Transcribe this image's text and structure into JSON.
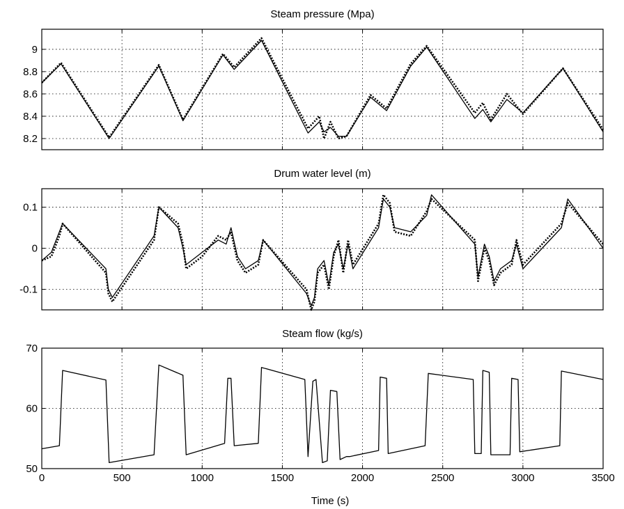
{
  "xlabel": "Time (s)",
  "x_ticks": [
    0,
    500,
    1000,
    1500,
    2000,
    2500,
    3000,
    3500
  ],
  "xlim": [
    0,
    3500
  ],
  "chart_data": [
    {
      "type": "line",
      "title": "Steam pressure (Mpa)",
      "xlabel": "Time (s)",
      "ylabel": "",
      "xlim": [
        0,
        3500
      ],
      "ylim": [
        8.1,
        9.18
      ],
      "y_ticks": [
        "8.2",
        "8.4",
        "8.6",
        "8.8",
        "9"
      ],
      "grid": true,
      "series": [
        {
          "name": "",
          "style": "solid",
          "x": [
            0,
            120,
            420,
            730,
            880,
            1130,
            1200,
            1370,
            1660,
            1730,
            1760,
            1800,
            1850,
            1900,
            2050,
            2150,
            2300,
            2400,
            2700,
            2750,
            2800,
            2900,
            3000,
            3250,
            3500
          ],
          "y": [
            8.7,
            8.87,
            8.2,
            8.85,
            8.36,
            8.95,
            8.82,
            9.08,
            8.25,
            8.35,
            8.26,
            8.3,
            8.22,
            8.22,
            8.57,
            8.45,
            8.85,
            9.02,
            8.38,
            8.46,
            8.35,
            8.55,
            8.43,
            8.83,
            8.26
          ]
        },
        {
          "name": "",
          "style": "dotted",
          "x": [
            0,
            120,
            420,
            730,
            880,
            1130,
            1200,
            1370,
            1660,
            1730,
            1760,
            1800,
            1850,
            1900,
            2050,
            2150,
            2300,
            2400,
            2700,
            2750,
            2800,
            2900,
            3000,
            3250,
            3500
          ],
          "y": [
            8.7,
            8.88,
            8.21,
            8.86,
            8.37,
            8.96,
            8.84,
            9.1,
            8.29,
            8.4,
            8.2,
            8.35,
            8.2,
            8.22,
            8.59,
            8.47,
            8.87,
            9.03,
            8.43,
            8.52,
            8.37,
            8.6,
            8.42,
            8.83,
            8.28
          ]
        }
      ]
    },
    {
      "type": "line",
      "title": "Drum water level (m)",
      "xlabel": "Time (s)",
      "ylabel": "",
      "xlim": [
        0,
        3500
      ],
      "ylim": [
        -0.15,
        0.145
      ],
      "y_ticks": [
        "-0.1",
        "0",
        "0.1"
      ],
      "grid": true,
      "series": [
        {
          "name": "",
          "style": "solid",
          "x": [
            0,
            60,
            110,
            130,
            400,
            415,
            440,
            700,
            730,
            850,
            880,
            900,
            1000,
            1100,
            1150,
            1180,
            1220,
            1270,
            1350,
            1380,
            1650,
            1680,
            1700,
            1720,
            1760,
            1790,
            1820,
            1850,
            1880,
            1910,
            1940,
            2100,
            2130,
            2170,
            2200,
            2300,
            2400,
            2430,
            2700,
            2720,
            2760,
            2790,
            2820,
            2860,
            2930,
            2960,
            3000,
            3240,
            3280,
            3500
          ],
          "y": [
            -0.03,
            -0.01,
            0.04,
            0.06,
            -0.05,
            -0.1,
            -0.12,
            0.03,
            0.1,
            0.05,
            0.0,
            -0.04,
            -0.01,
            0.02,
            0.01,
            0.05,
            -0.02,
            -0.05,
            -0.03,
            0.02,
            -0.11,
            -0.14,
            -0.12,
            -0.05,
            -0.03,
            -0.09,
            -0.01,
            0.01,
            -0.05,
            0.01,
            -0.05,
            0.05,
            0.12,
            0.1,
            0.05,
            0.04,
            0.08,
            0.13,
            0.01,
            -0.07,
            0.01,
            -0.02,
            -0.08,
            -0.05,
            -0.03,
            0.01,
            -0.05,
            0.05,
            0.12,
            0.0
          ]
        },
        {
          "name": "",
          "style": "dotted",
          "x": [
            0,
            60,
            110,
            130,
            400,
            415,
            440,
            700,
            730,
            850,
            880,
            900,
            1000,
            1100,
            1150,
            1180,
            1220,
            1270,
            1350,
            1380,
            1650,
            1680,
            1700,
            1720,
            1760,
            1790,
            1820,
            1850,
            1880,
            1910,
            1940,
            2100,
            2130,
            2170,
            2200,
            2300,
            2400,
            2430,
            2700,
            2720,
            2760,
            2790,
            2820,
            2860,
            2930,
            2960,
            3000,
            3240,
            3280,
            3500
          ],
          "y": [
            -0.03,
            -0.02,
            0.03,
            0.06,
            -0.06,
            -0.11,
            -0.13,
            0.02,
            0.1,
            0.06,
            0.01,
            -0.05,
            -0.02,
            0.03,
            0.02,
            0.04,
            -0.03,
            -0.06,
            -0.04,
            0.02,
            -0.1,
            -0.15,
            -0.13,
            -0.06,
            -0.04,
            -0.1,
            -0.02,
            0.02,
            -0.06,
            0.02,
            -0.04,
            0.06,
            0.13,
            0.11,
            0.04,
            0.03,
            0.09,
            0.12,
            0.02,
            -0.08,
            0.0,
            -0.03,
            -0.09,
            -0.06,
            -0.04,
            0.02,
            -0.04,
            0.06,
            0.11,
            0.01
          ]
        }
      ]
    },
    {
      "type": "line",
      "title": "Steam flow (kg/s)",
      "xlabel": "Time (s)",
      "ylabel": "",
      "xlim": [
        0,
        3500
      ],
      "ylim": [
        50,
        70
      ],
      "y_ticks": [
        "50",
        "60",
        "70"
      ],
      "grid": true,
      "series": [
        {
          "name": "",
          "style": "solid",
          "x": [
            0,
            110,
            130,
            400,
            420,
            700,
            730,
            880,
            900,
            1140,
            1160,
            1180,
            1200,
            1350,
            1370,
            1640,
            1660,
            1690,
            1710,
            1750,
            1780,
            1800,
            1840,
            1860,
            1900,
            1920,
            2100,
            2110,
            2150,
            2160,
            2390,
            2410,
            2690,
            2700,
            2740,
            2750,
            2790,
            2800,
            2920,
            2930,
            2970,
            2980,
            3230,
            3240,
            3500
          ],
          "y": [
            53.3,
            53.8,
            66.3,
            64.7,
            51.0,
            52.3,
            67.2,
            65.5,
            52.3,
            54.2,
            65.0,
            65.0,
            53.8,
            54.2,
            66.8,
            64.8,
            52.0,
            64.5,
            64.8,
            51.0,
            51.3,
            63.0,
            62.8,
            51.5,
            52.0,
            52.0,
            53.0,
            65.2,
            65.0,
            52.5,
            53.8,
            65.8,
            64.8,
            52.5,
            52.5,
            66.3,
            66.0,
            52.3,
            52.3,
            65.0,
            64.8,
            52.8,
            53.8,
            66.2,
            64.8
          ]
        }
      ]
    }
  ]
}
